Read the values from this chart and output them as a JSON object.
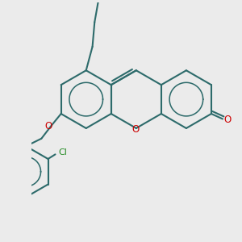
{
  "background_color": "#ebebeb",
  "bond_color": "#2d6b6b",
  "heteroatom_color": "#cc0000",
  "cl_color": "#228b22",
  "line_width": 1.5,
  "dpi": 100,
  "figsize": [
    3.0,
    3.0
  ],
  "xlim": [
    0.0,
    10.0
  ],
  "ylim": [
    -1.0,
    10.5
  ]
}
